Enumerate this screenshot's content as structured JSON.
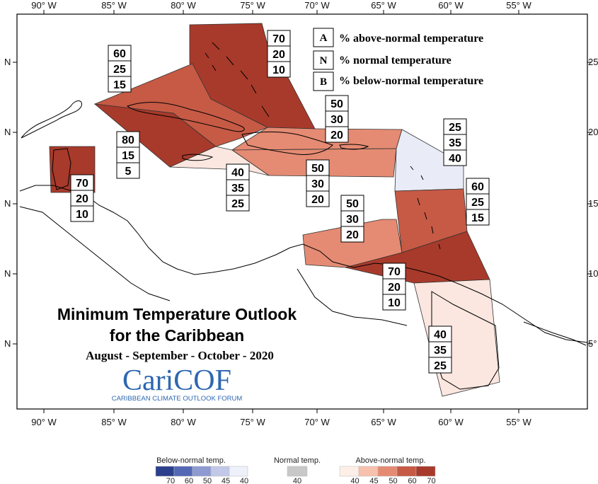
{
  "map": {
    "title_line1": "Minimum Temperature Outlook",
    "title_line2": "for the Caribbean",
    "period": "August - September - October - 2020",
    "lon_labels": [
      "90° W",
      "85° W",
      "80° W",
      "75° W",
      "70° W",
      "65° W",
      "60° W",
      "55° W"
    ],
    "lat_labels_left": [
      "N",
      "N",
      "N",
      "N",
      "N"
    ],
    "lat_labels_right": [
      "25",
      "20",
      "15",
      "10",
      "5°"
    ]
  },
  "legend": {
    "items": [
      {
        "letter": "A",
        "text": "% above-normal temperature"
      },
      {
        "letter": "N",
        "text": "% normal temperature"
      },
      {
        "letter": "B",
        "text": "% below-normal temperature"
      }
    ]
  },
  "logo": {
    "name": "CariCOF",
    "subtitle": "CARIBBEAN CLIMATE OUTLOOK FORUM"
  },
  "regions": [
    {
      "name": "bahamas",
      "above": 70,
      "normal": 20,
      "below": 10,
      "color": "#a83a2b"
    },
    {
      "name": "cuba",
      "above": 60,
      "normal": 25,
      "below": 15,
      "color": "#c65a45"
    },
    {
      "name": "western-cuba-caymans",
      "above": 80,
      "normal": 15,
      "below": 5,
      "color": "#a83a2b"
    },
    {
      "name": "jamaica",
      "above": 40,
      "normal": 35,
      "below": 25,
      "color": "#fbe7e0"
    },
    {
      "name": "hispaniola-north",
      "above": 50,
      "normal": 30,
      "below": 20,
      "color": "#e58b73"
    },
    {
      "name": "hispaniola-south-puerto-rico",
      "above": 50,
      "normal": 30,
      "below": 20,
      "color": "#e58b73"
    },
    {
      "name": "leeward-islands",
      "above": 25,
      "normal": 35,
      "below": 40,
      "color": "#e9ecf7"
    },
    {
      "name": "windward-islands",
      "above": 60,
      "normal": 25,
      "below": 15,
      "color": "#c65a45"
    },
    {
      "name": "abc-islands",
      "above": 50,
      "normal": 30,
      "below": 20,
      "color": "#e58b73"
    },
    {
      "name": "trinidad-tobago",
      "above": 70,
      "normal": 20,
      "below": 10,
      "color": "#a83a2b"
    },
    {
      "name": "guianas",
      "above": 40,
      "normal": 35,
      "below": 25,
      "color": "#fbe7e0"
    },
    {
      "name": "belize",
      "above": 70,
      "normal": 20,
      "below": 10,
      "color": "#a83a2b"
    }
  ],
  "color_scale": {
    "below_caption": "Below-normal temp.",
    "normal_caption": "Normal temp.",
    "above_caption": "Above-normal temp.",
    "below_colors": [
      "#2b3f8c",
      "#5468b5",
      "#8e9ad2",
      "#c2c8e8",
      "#eef0fa"
    ],
    "below_values": [
      "70",
      "60",
      "50",
      "45",
      "40"
    ],
    "normal_color": "#c8c8c8",
    "normal_values": [
      "40"
    ],
    "above_colors": [
      "#fdeee7",
      "#f7c1ad",
      "#e58b73",
      "#c65a45",
      "#a83a2b"
    ],
    "above_values": [
      "40",
      "45",
      "50",
      "60",
      "70"
    ]
  }
}
